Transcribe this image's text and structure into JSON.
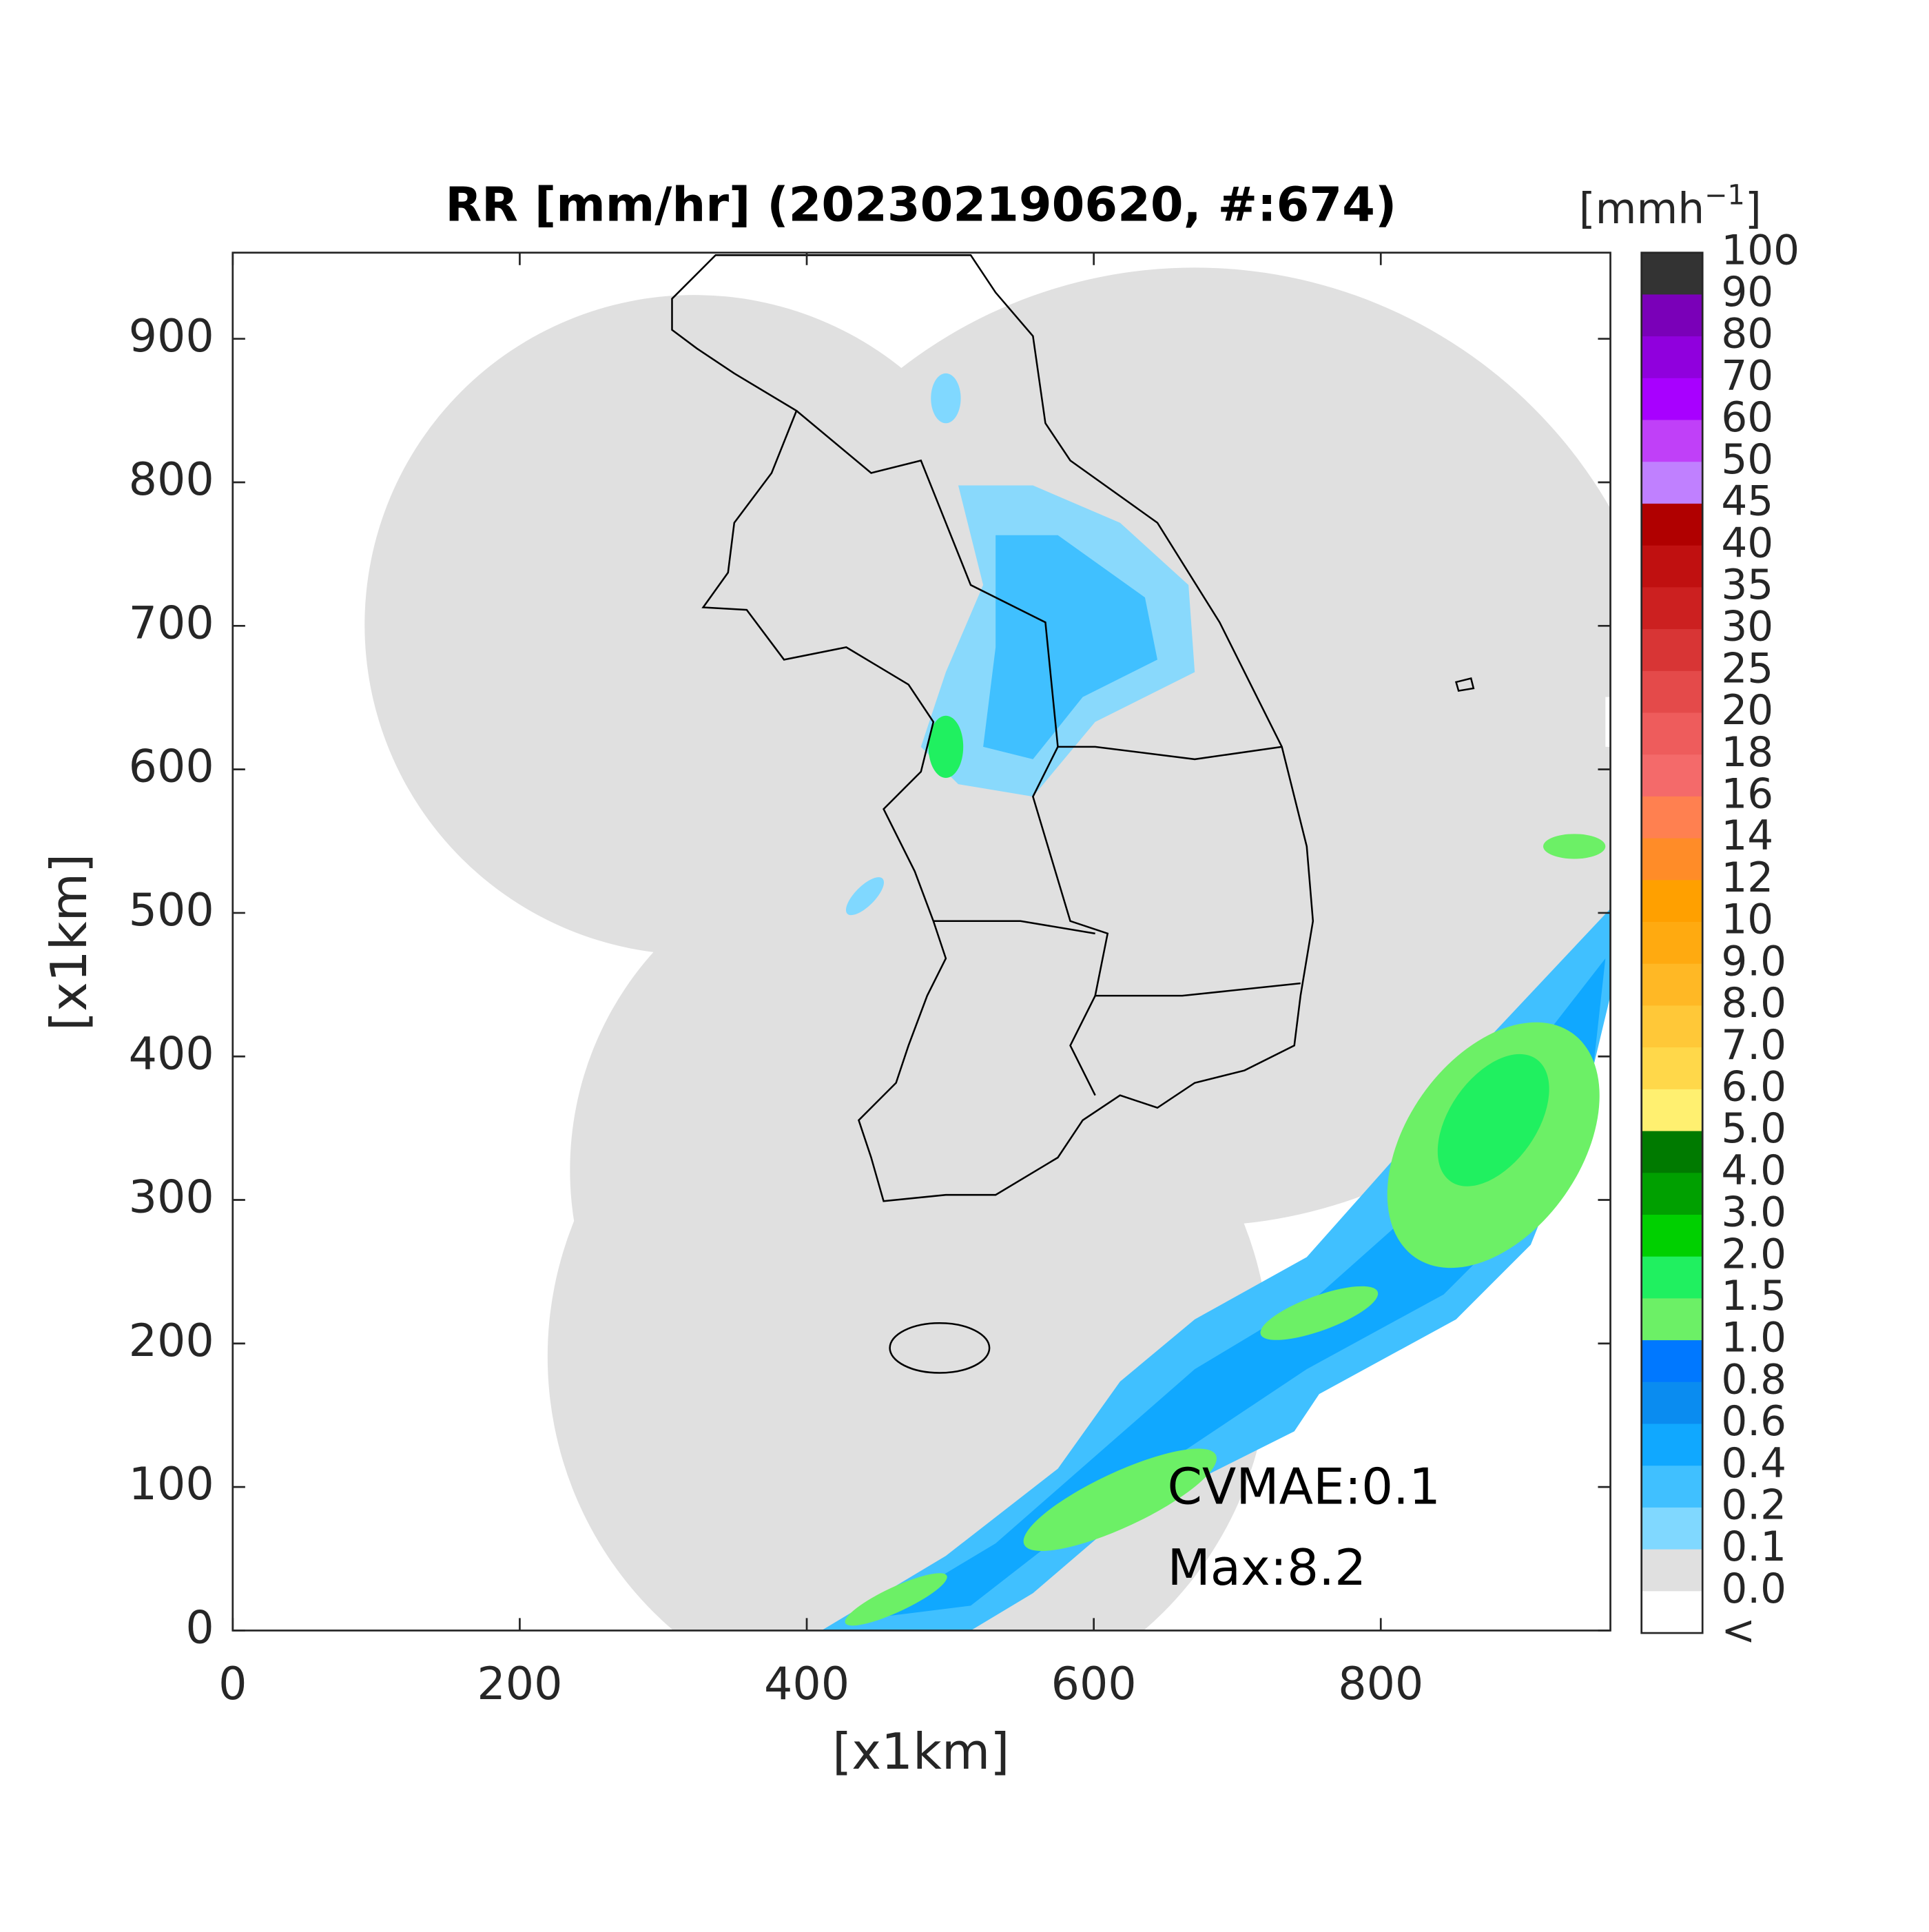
{
  "chart_data": {
    "type": "heatmap",
    "title": "RR [mm/hr] (202302190620, #:674)",
    "x_label": "[x1km]",
    "y_label": "[x1km]",
    "xlim": [
      0,
      960
    ],
    "ylim": [
      0,
      960
    ],
    "xticks": [
      0,
      200,
      400,
      600,
      800
    ],
    "yticks": [
      0,
      100,
      200,
      300,
      400,
      500,
      600,
      700,
      800,
      900
    ],
    "annotations": [
      "CVMAE:0.1",
      "Max:8.2"
    ],
    "colorbar": {
      "unit": [
        "[mmh",
        "−1",
        "]"
      ],
      "labels": [
        "100",
        "90",
        "80",
        "70",
        "60",
        "50",
        "45",
        "40",
        "35",
        "30",
        "25",
        "20",
        "18",
        "16",
        "14",
        "12",
        "10",
        "9.0",
        "8.0",
        "7.0",
        "6.0",
        "5.0",
        "4.0",
        "3.0",
        "2.0",
        "1.5",
        "1.0",
        "0.8",
        "0.6",
        "0.4",
        "0.2",
        "0.1",
        "0.0",
        "<"
      ],
      "colors": [
        "#333333",
        "#7a00b8",
        "#9000dd",
        "#a800ff",
        "#c040f8",
        "#c080ff",
        "#b00000",
        "#c01010",
        "#cc2020",
        "#d83535",
        "#e44a4a",
        "#ee5c5c",
        "#f46a6a",
        "#ff8050",
        "#ff8c28",
        "#ffa000",
        "#ffaa10",
        "#ffb825",
        "#ffc838",
        "#ffd84a",
        "#fff070",
        "#007a00",
        "#00a000",
        "#00d000",
        "#20f060",
        "#6cf066",
        "#0078ff",
        "#0a8cf0",
        "#10a8ff",
        "#40c0ff",
        "#80d8ff",
        "#e0e0e0",
        "#ffffff"
      ]
    }
  }
}
